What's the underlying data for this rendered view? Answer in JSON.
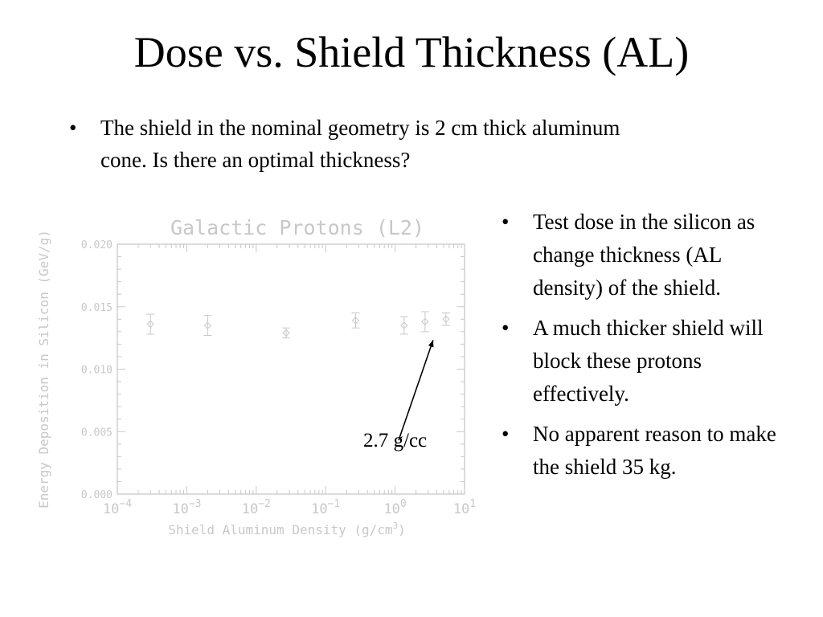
{
  "slide": {
    "title": "Dose vs. Shield Thickness (AL)",
    "intro_bullets": [
      "The shield in the nominal geometry is 2 cm thick aluminum cone. Is there an optimal thickness?"
    ],
    "side_bullets": [
      "Test dose in the silicon as change thickness (AL density) of the shield.",
      "A much thicker shield will block these protons effectively.",
      "No apparent reason to make the shield 35 kg."
    ],
    "bullet_glyph": "•"
  },
  "chart_data": {
    "type": "scatter",
    "title": "Galactic Protons (L2)",
    "xlabel_prefix": "Shield Aluminum Density (g/cm",
    "xlabel_sup": "3",
    "xlabel_suffix": ")",
    "ylabel": "Energy Deposition in Silicon (GeV/g)",
    "x_scale": "log",
    "xlim": [
      0.0001,
      10
    ],
    "ylim": [
      0,
      0.02
    ],
    "x_ticks": [
      {
        "base": "10",
        "exp": "−4"
      },
      {
        "base": "10",
        "exp": "−3"
      },
      {
        "base": "10",
        "exp": "−2"
      },
      {
        "base": "10",
        "exp": "−1"
      },
      {
        "base": "10",
        "exp": "0"
      },
      {
        "base": "10",
        "exp": "1"
      }
    ],
    "y_ticks": [
      "0.000",
      "0.005",
      "0.010",
      "0.015",
      "0.020"
    ],
    "series": [
      {
        "x": [
          0.0003,
          0.002,
          0.027,
          0.27,
          1.35,
          2.7,
          5.4
        ],
        "y": [
          0.0136,
          0.0135,
          0.0129,
          0.0139,
          0.0135,
          0.0138,
          0.014
        ],
        "y_err": [
          0.0008,
          0.0008,
          0.0004,
          0.0006,
          0.0007,
          0.0008,
          0.0005
        ]
      }
    ],
    "annotation": {
      "text": "2.7 g/cc",
      "points_to_x": 2.7,
      "points_to_y": 0.0138
    },
    "colors": {
      "plot": "#c8c8c8",
      "annotation": "#000000"
    }
  }
}
